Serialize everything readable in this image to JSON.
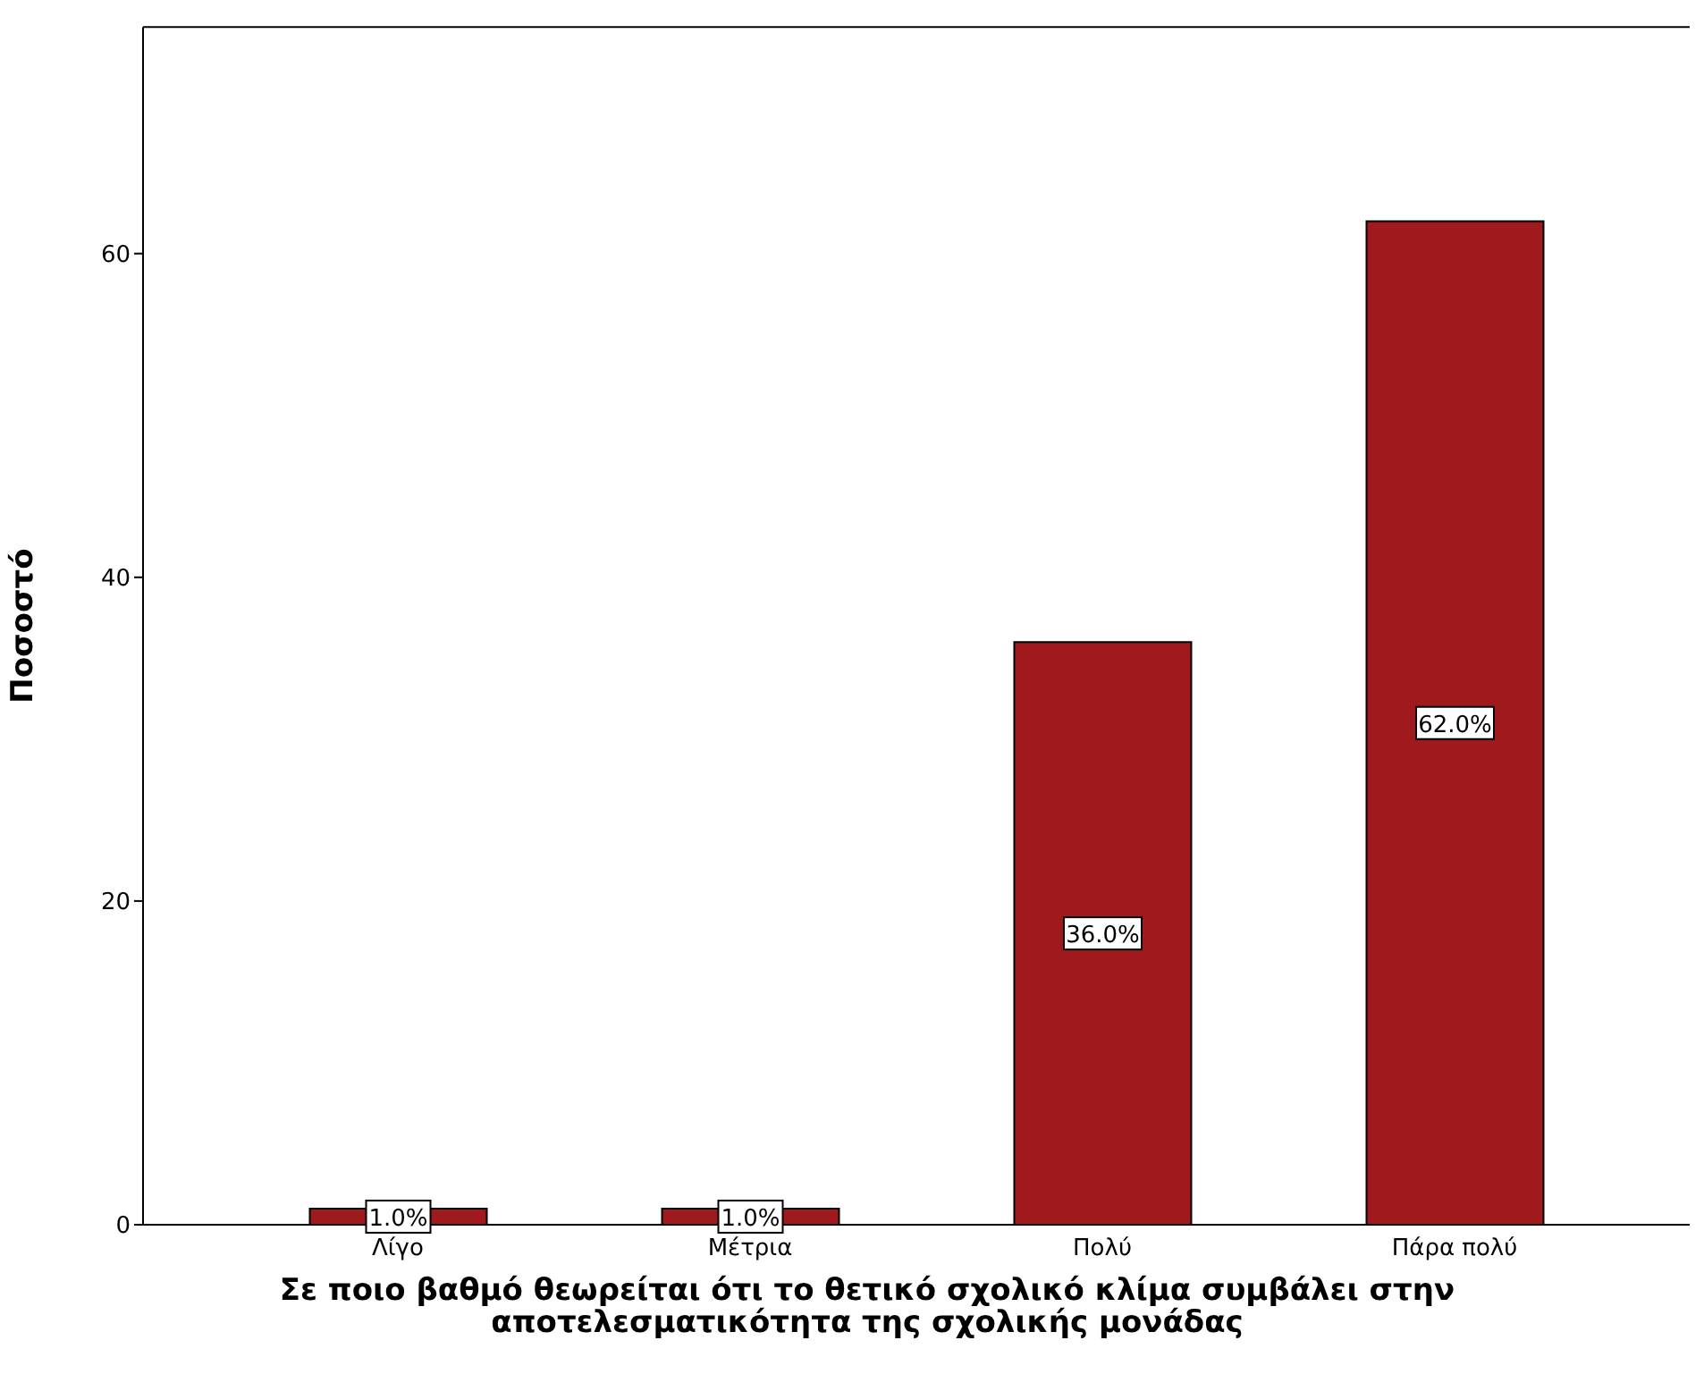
{
  "chart_data": {
    "type": "bar",
    "xlabel": "Σε ποιο βαθμό θεωρείται ότι το θετικό σχολικό κλίμα συμβάλει στην αποτελεσματικότητα της σχολικής μονάδας",
    "ylabel": "Ποσοστό",
    "categories": [
      "Λίγο",
      "Μέτρια",
      "Πολύ",
      "Πάρα πολύ"
    ],
    "values": [
      1,
      1,
      36,
      62
    ],
    "value_labels": [
      "1.0%",
      "1.0%",
      "36.0%",
      "62.0%"
    ],
    "color": "#a0191c",
    "ylim": [
      0,
      74
    ],
    "yticks": [
      0,
      20,
      40,
      60
    ],
    "grid": false
  }
}
